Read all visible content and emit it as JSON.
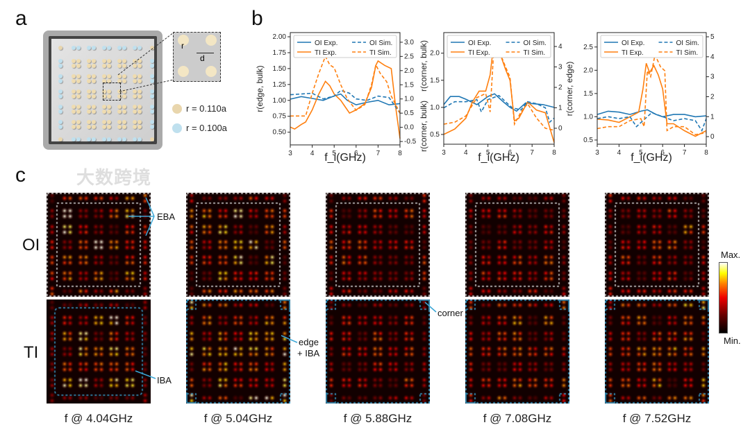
{
  "panel_labels": {
    "a": "a",
    "b": "b",
    "c": "c"
  },
  "panel_a": {
    "inset_labels": {
      "r": "r",
      "d": "d"
    },
    "legend": [
      {
        "label": "r = 0.110a",
        "color": "#e9d6ad"
      },
      {
        "label": "r = 0.100a",
        "color": "#bfe0ee"
      }
    ]
  },
  "colors": {
    "oi": "#1f77b4",
    "ti": "#ff7f0e",
    "oi_box": "#dddddd",
    "ti_box": "#3aa6d6"
  },
  "chart_data": [
    {
      "type": "line",
      "title": "",
      "xlabel": "f_i(GHz)",
      "ylabel": "r(edge, bulk)",
      "ylabel_right": "r(corner, bulk)",
      "xlim": [
        3,
        8
      ],
      "ylim": [
        0.3,
        2.066
      ],
      "ylim_right": [
        -0.62,
        3.34
      ],
      "xticks": [
        3,
        4,
        5,
        6,
        7,
        8
      ],
      "yticks": [
        "0.50",
        "0.75",
        "1.00",
        "1.25",
        "1.50",
        "1.75",
        "2.00"
      ],
      "yticks_right": [
        "-0.5",
        "0.0",
        "0.5",
        "1.0",
        "1.5",
        "2.0",
        "2.5",
        "3.0"
      ],
      "legend": [
        "OI Exp.",
        "TI Exp.",
        "OI Sim.",
        "TI Sim."
      ],
      "legend_position": "top",
      "series": [
        {
          "name": "OI Exp.",
          "axis": "left",
          "x": [
            3,
            3.5,
            4,
            4.5,
            5,
            5.3,
            5.6,
            6,
            6.5,
            7,
            7.5,
            8
          ],
          "y": [
            1.02,
            1.06,
            1.03,
            1.0,
            1.07,
            1.1,
            1.0,
            0.93,
            0.97,
            1.0,
            0.93,
            0.95
          ]
        },
        {
          "name": "TI Exp.",
          "axis": "left",
          "x": [
            3,
            3.2,
            3.5,
            3.7,
            4,
            4.3,
            4.6,
            4.8,
            5,
            5.3,
            5.5,
            5.7,
            6,
            6.4,
            6.7,
            6.9,
            7,
            7.3,
            7.6,
            7.8,
            8
          ],
          "y": [
            0.58,
            0.55,
            0.62,
            0.66,
            0.85,
            1.1,
            1.3,
            1.23,
            1.1,
            1.0,
            0.9,
            0.8,
            0.85,
            0.95,
            1.2,
            1.55,
            1.62,
            1.55,
            1.5,
            0.9,
            0.4
          ]
        },
        {
          "name": "OI Sim.",
          "axis": "right",
          "x": [
            3,
            4,
            4.5,
            5,
            5.3,
            5.7,
            6,
            6.5,
            7,
            7.5,
            8
          ],
          "y": [
            1.15,
            1.2,
            1.0,
            1.1,
            1.3,
            1.2,
            1.0,
            0.95,
            1.1,
            1.05,
            0.5
          ]
        },
        {
          "name": "TI Sim.",
          "axis": "right",
          "x": [
            3,
            3.7,
            4,
            4.3,
            4.5,
            4.6,
            4.8,
            5,
            5.3,
            5.6,
            6,
            6.4,
            6.7,
            6.9,
            7.1,
            7.4,
            7.6,
            8
          ],
          "y": [
            0.4,
            0.4,
            1.2,
            1.9,
            2.3,
            2.5,
            2.2,
            2.1,
            1.5,
            1.0,
            0.6,
            0.8,
            1.5,
            2.2,
            1.9,
            1.6,
            1.1,
            0.5
          ]
        }
      ]
    },
    {
      "type": "line",
      "title": "",
      "xlabel": "f_i(GHz)",
      "ylabel": "r(corner, bulk)",
      "xlim": [
        3,
        8
      ],
      "ylim": [
        0.32,
        2.38
      ],
      "ylim_right": [
        -0.78,
        4.68
      ],
      "xticks": [
        3,
        4,
        5,
        6,
        7,
        8
      ],
      "yticks": [
        "0.5",
        "1.0",
        "1.5",
        "2.0"
      ],
      "yticks_right": [
        "0",
        "1",
        "2",
        "3",
        "4"
      ],
      "legend": [
        "OI Exp.",
        "TI Exp.",
        "OI Sim.",
        "TI Sim."
      ],
      "legend_position": "top",
      "series": [
        {
          "name": "OI Exp.",
          "axis": "left",
          "x": [
            3,
            3.3,
            3.7,
            4,
            4.5,
            5,
            5.3,
            5.7,
            6,
            6.3,
            6.7,
            7,
            7.5,
            8
          ],
          "y": [
            1.05,
            1.2,
            1.2,
            1.15,
            1.05,
            1.2,
            1.25,
            1.1,
            1.0,
            0.93,
            1.08,
            1.07,
            1.05,
            1.0
          ]
        },
        {
          "name": "TI Exp.",
          "axis": "left",
          "x": [
            3,
            3.5,
            4,
            4.3,
            4.6,
            4.9,
            5.1,
            5.3,
            5.5,
            5.8,
            6,
            6.2,
            6.4,
            6.8,
            7.2,
            7.6,
            8
          ],
          "y": [
            0.5,
            0.6,
            0.8,
            1.1,
            1.3,
            1.3,
            1.6,
            2.3,
            2.05,
            1.7,
            1.5,
            0.75,
            0.8,
            1.1,
            0.95,
            0.9,
            0.35
          ]
        },
        {
          "name": "OI Sim.",
          "axis": "right",
          "x": [
            3,
            3.5,
            4,
            4.5,
            4.7,
            5,
            5.5,
            5.8,
            6.1,
            6.5,
            6.8,
            7.2,
            7.6,
            7.8,
            8
          ],
          "y": [
            1.0,
            1.3,
            1.3,
            1.4,
            0.8,
            1.4,
            1.6,
            1.3,
            1.0,
            0.9,
            1.3,
            1.2,
            1.0,
            0.3,
            0.5
          ]
        },
        {
          "name": "TI Sim.",
          "axis": "right",
          "x": [
            3,
            3.5,
            4,
            4.5,
            4.9,
            5.1,
            5.3,
            5.5,
            5.8,
            6,
            6.2,
            6.5,
            6.8,
            7.2,
            7.6,
            8
          ],
          "y": [
            0.2,
            0.3,
            0.6,
            1.5,
            1.7,
            0.8,
            4.5,
            3.8,
            3.0,
            2.5,
            0.2,
            0.8,
            1.2,
            0.5,
            0.0,
            -0.1
          ]
        }
      ]
    },
    {
      "type": "line",
      "title": "",
      "xlabel": "f_i(GHz)",
      "ylabel": "r(corner, edge)",
      "xlim": [
        3,
        8
      ],
      "ylim": [
        0.41,
        2.81
      ],
      "ylim_right": [
        -0.38,
        5.21
      ],
      "xticks": [
        3,
        4,
        5,
        6,
        7,
        8
      ],
      "yticks": [
        "0.5",
        "1.0",
        "1.5",
        "2.0",
        "2.5"
      ],
      "yticks_right": [
        "0",
        "1",
        "2",
        "3",
        "4",
        "5"
      ],
      "legend": [
        "OI Exp.",
        "TI Exp.",
        "OI Sim.",
        "TI Sim."
      ],
      "legend_position": "top",
      "series": [
        {
          "name": "OI Exp.",
          "axis": "left",
          "x": [
            3,
            3.5,
            4,
            4.5,
            5,
            5.3,
            5.7,
            6,
            6.5,
            7,
            7.5,
            8
          ],
          "y": [
            1.05,
            1.12,
            1.1,
            1.05,
            1.12,
            1.15,
            1.05,
            1.0,
            1.05,
            1.05,
            1.0,
            1.02
          ]
        },
        {
          "name": "TI Exp.",
          "axis": "left",
          "x": [
            3,
            3.5,
            4,
            4.5,
            4.9,
            5.1,
            5.25,
            5.4,
            5.6,
            5.8,
            6,
            6.2,
            6.5,
            7,
            7.5,
            8
          ],
          "y": [
            0.95,
            0.93,
            0.88,
            1.0,
            1.1,
            1.6,
            2.15,
            1.95,
            2.1,
            1.9,
            1.6,
            0.85,
            0.85,
            0.7,
            0.58,
            0.7
          ]
        },
        {
          "name": "OI Sim.",
          "axis": "right",
          "x": [
            3,
            3.5,
            4,
            4.5,
            4.8,
            5,
            5.5,
            6,
            6.5,
            7,
            7.5,
            7.8,
            8
          ],
          "y": [
            0.9,
            1.0,
            0.9,
            1.0,
            0.5,
            0.7,
            1.2,
            1.0,
            0.8,
            0.9,
            0.8,
            0.3,
            0.9
          ]
        },
        {
          "name": "TI Sim.",
          "axis": "right",
          "x": [
            3,
            3.5,
            4,
            4.5,
            5,
            5.15,
            5.3,
            5.45,
            5.65,
            5.9,
            6.1,
            6.2,
            6.5,
            7,
            7.5,
            8
          ],
          "y": [
            0.4,
            0.5,
            0.5,
            0.8,
            0.9,
            0.5,
            3.3,
            3.0,
            4.1,
            3.5,
            3.3,
            0.3,
            0.5,
            0.5,
            0.1,
            0.2
          ]
        }
      ]
    }
  ],
  "panel_c": {
    "rows": [
      "OI",
      "TI"
    ],
    "captions": [
      "f @ 4.04GHz",
      "f @ 5.04GHz",
      "f @ 5.88GHz",
      "f @ 7.08GHz",
      "f @ 7.52GHz"
    ],
    "annotations": {
      "eba": "EBA",
      "iba": "IBA",
      "edge_iba_1": "edge",
      "edge_iba_2": "+ IBA",
      "corner": "corner"
    },
    "colorbar": {
      "max": "Max.",
      "min": "Min."
    }
  },
  "watermark": "大数跨境"
}
